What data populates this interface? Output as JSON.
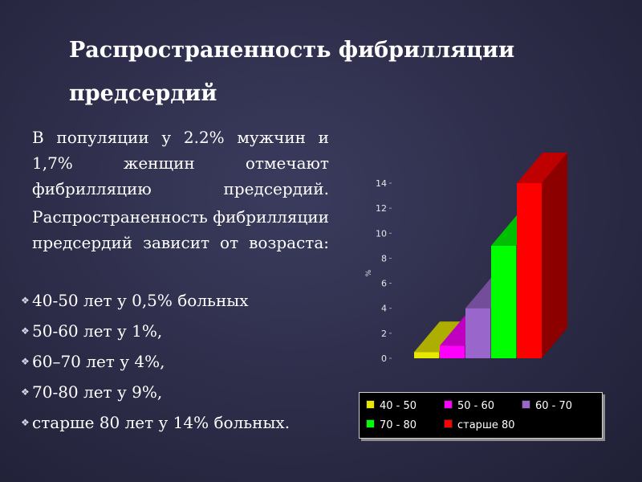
{
  "slide": {
    "title": "Распространенность фибрилляции предсердий",
    "paragraph1": "В популяции у 2.2% мужчин и 1,7% женщин отмечают фибрилляцию предсердий.",
    "paragraph2": "Распространенность фибрилляции предсердий зависит от возраста:",
    "bullets": [
      " 40-50 лет у 0,5% больных",
      "50-60 лет  у 1%,",
      "60–70 лет  у 4%,",
      "70-80 лет  у 9%,",
      "старше 80 лет у 14% больных."
    ]
  },
  "chart_data": {
    "type": "bar",
    "categories": [
      "40 - 50",
      "50 - 60",
      "60 - 70",
      "70 - 80",
      "старше 80"
    ],
    "values": [
      0.5,
      1,
      4,
      9,
      14
    ],
    "colors": [
      "#e8e800",
      "#ff00ff",
      "#9966cc",
      "#00ff00",
      "#ff0000"
    ],
    "ylim": [
      0,
      14
    ],
    "yticks": [
      "0",
      "2",
      "4",
      "6",
      "8",
      "10",
      "12",
      "14"
    ],
    "ylabel": "%",
    "xlabel": "",
    "title": "",
    "grid": false,
    "legend_position": "bottom",
    "style": "3d"
  }
}
